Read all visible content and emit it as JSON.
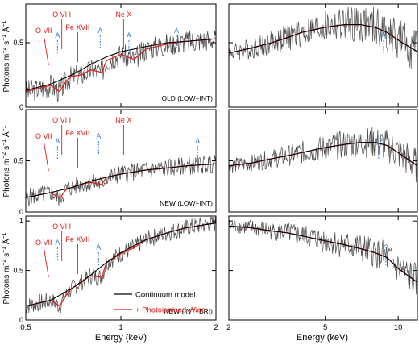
{
  "figure": {
    "ylabel_main": "Photons m",
    "ylabel_sup1": "−2",
    "ylabel_mid": " s",
    "ylabel_sup2": "−1",
    "ylabel_end": " Å",
    "ylabel_sup3": "−1",
    "xlabel_left": "Energy (keV)",
    "xlabel_right": "Energy (keV)",
    "legend": {
      "continuum": "Continuum model",
      "wind": "+ Photoionised Wind"
    },
    "colors": {
      "data": "#4a4a4a",
      "continuum": "#000000",
      "wind": "#e0201b",
      "ion_label": "#e0201b",
      "marker": "#3a7fd5",
      "frame": "#000000"
    }
  },
  "chart_data": [
    {
      "type": "line",
      "row": 0,
      "col": 0,
      "panel_label": "OLD (LOW−INT)",
      "xscale": "log",
      "xlim": [
        0.5,
        2.0
      ],
      "ylim": [
        0,
        0.8
      ],
      "yticks": [
        0,
        0.5
      ],
      "xticks": [
        "0.5",
        "1",
        "2"
      ],
      "series": [
        {
          "name": "Continuum model",
          "x": [
            0.5,
            0.6,
            0.7,
            0.8,
            0.9,
            1.0,
            1.2,
            1.4,
            1.6,
            2.0
          ],
          "y": [
            0.13,
            0.18,
            0.25,
            0.33,
            0.39,
            0.43,
            0.47,
            0.5,
            0.51,
            0.53
          ]
        },
        {
          "name": "+ Photoionised Wind",
          "x": [
            0.5,
            0.6,
            0.64,
            0.67,
            0.7,
            0.75,
            0.8,
            0.87,
            0.9,
            1.0,
            1.1,
            1.2,
            1.4,
            1.6,
            2.0
          ],
          "y": [
            0.12,
            0.17,
            0.12,
            0.2,
            0.24,
            0.25,
            0.29,
            0.27,
            0.36,
            0.41,
            0.37,
            0.45,
            0.49,
            0.51,
            0.53
          ]
        }
      ],
      "annotations": [
        {
          "text": "O VII",
          "x": 0.57,
          "kind": "ion"
        },
        {
          "text": "O VIII",
          "x": 0.65,
          "kind": "ion"
        },
        {
          "text": "Fe XVII",
          "x": 0.73,
          "kind": "ion"
        },
        {
          "text": "Ne X",
          "x": 1.02,
          "kind": "ion"
        },
        {
          "text": "A",
          "x": 0.63,
          "kind": "absorber"
        },
        {
          "text": "A",
          "x": 0.86,
          "kind": "absorber"
        },
        {
          "text": "A",
          "x": 1.06,
          "kind": "absorber"
        },
        {
          "text": "A",
          "x": 1.5,
          "kind": "absorber"
        }
      ]
    },
    {
      "type": "line",
      "row": 0,
      "col": 1,
      "panel_label": "",
      "xscale": "log",
      "xlim": [
        2,
        12
      ],
      "ylim": [
        0,
        0.8
      ],
      "yticks": [
        0,
        0.5
      ],
      "xticks": [
        "2",
        "5",
        "10"
      ],
      "series": [
        {
          "name": "Continuum model",
          "x": [
            2,
            2.5,
            3,
            3.5,
            4,
            5,
            6,
            7,
            8,
            9,
            10,
            12
          ],
          "y": [
            0.42,
            0.46,
            0.5,
            0.54,
            0.58,
            0.62,
            0.64,
            0.64,
            0.62,
            0.58,
            0.52,
            0.43
          ]
        },
        {
          "name": "+ Photoionised Wind",
          "x": [
            2,
            2.5,
            3,
            3.5,
            4,
            5,
            6,
            7,
            8,
            9,
            10,
            12
          ],
          "y": [
            0.42,
            0.46,
            0.5,
            0.54,
            0.58,
            0.62,
            0.64,
            0.64,
            0.62,
            0.58,
            0.52,
            0.43
          ]
        }
      ],
      "annotations": [
        {
          "text": "A",
          "x": 8.7,
          "kind": "absorber"
        }
      ]
    },
    {
      "type": "line",
      "row": 1,
      "col": 0,
      "panel_label": "NEW (LOW−INT)",
      "xscale": "log",
      "xlim": [
        0.5,
        2.0
      ],
      "ylim": [
        0,
        1.0
      ],
      "yticks": [
        0,
        0.5
      ],
      "xticks": [
        "0.5",
        "1",
        "2"
      ],
      "series": [
        {
          "name": "Continuum model",
          "x": [
            0.5,
            0.6,
            0.7,
            0.8,
            0.9,
            1.0,
            1.2,
            1.4,
            1.6,
            2.0
          ],
          "y": [
            0.14,
            0.19,
            0.24,
            0.3,
            0.34,
            0.37,
            0.41,
            0.43,
            0.45,
            0.47
          ]
        },
        {
          "name": "+ Photoionised Wind",
          "x": [
            0.5,
            0.6,
            0.64,
            0.67,
            0.7,
            0.75,
            0.8,
            0.87,
            0.9,
            1.0,
            1.2,
            1.4,
            1.6,
            2.0
          ],
          "y": [
            0.14,
            0.19,
            0.13,
            0.22,
            0.24,
            0.27,
            0.29,
            0.27,
            0.34,
            0.37,
            0.41,
            0.43,
            0.45,
            0.47
          ]
        }
      ],
      "annotations": [
        {
          "text": "O VII",
          "x": 0.57,
          "kind": "ion"
        },
        {
          "text": "O VIII",
          "x": 0.65,
          "kind": "ion"
        },
        {
          "text": "Fe XVII",
          "x": 0.73,
          "kind": "ion"
        },
        {
          "text": "Ne X",
          "x": 1.02,
          "kind": "ion"
        },
        {
          "text": "A",
          "x": 0.63,
          "kind": "absorber"
        },
        {
          "text": "A",
          "x": 0.85,
          "kind": "absorber"
        },
        {
          "text": "A",
          "x": 1.75,
          "kind": "absorber"
        }
      ]
    },
    {
      "type": "line",
      "row": 1,
      "col": 1,
      "panel_label": "",
      "xscale": "log",
      "xlim": [
        2,
        12
      ],
      "ylim": [
        0,
        1.0
      ],
      "yticks": [
        0,
        0.5
      ],
      "xticks": [
        "2",
        "5",
        "10"
      ],
      "series": [
        {
          "name": "Continuum model",
          "x": [
            2,
            2.5,
            3,
            3.5,
            4,
            5,
            6,
            7,
            8,
            9,
            10,
            12
          ],
          "y": [
            0.45,
            0.48,
            0.52,
            0.55,
            0.58,
            0.63,
            0.66,
            0.68,
            0.68,
            0.65,
            0.58,
            0.45
          ]
        },
        {
          "name": "+ Photoionised Wind",
          "x": [
            2,
            2.5,
            3,
            3.5,
            4,
            5,
            6,
            7,
            8,
            9,
            10,
            12
          ],
          "y": [
            0.45,
            0.48,
            0.52,
            0.55,
            0.58,
            0.63,
            0.66,
            0.68,
            0.68,
            0.65,
            0.58,
            0.45
          ]
        }
      ],
      "annotations": [
        {
          "text": "??",
          "x": 8.3,
          "kind": "unknown"
        }
      ]
    },
    {
      "type": "line",
      "row": 2,
      "col": 0,
      "panel_label": "NEW (INT−BRI)",
      "xscale": "log",
      "xlim": [
        0.5,
        2.0
      ],
      "ylim": [
        0,
        1.05
      ],
      "yticks": [
        0,
        0.5,
        1
      ],
      "xticks": [
        "0.5",
        "1",
        "2"
      ],
      "series": [
        {
          "name": "Continuum model",
          "x": [
            0.5,
            0.6,
            0.7,
            0.8,
            0.9,
            1.0,
            1.1,
            1.2,
            1.4,
            1.6,
            2.0
          ],
          "y": [
            0.14,
            0.2,
            0.32,
            0.45,
            0.58,
            0.68,
            0.75,
            0.81,
            0.88,
            0.93,
            0.98
          ]
        },
        {
          "name": "+ Photoionised Wind",
          "x": [
            0.5,
            0.6,
            0.64,
            0.67,
            0.7,
            0.75,
            0.8,
            0.87,
            0.9,
            1.0,
            1.1,
            1.2,
            1.4,
            1.6,
            2.0
          ],
          "y": [
            0.14,
            0.2,
            0.14,
            0.25,
            0.32,
            0.38,
            0.45,
            0.43,
            0.58,
            0.67,
            0.73,
            0.81,
            0.88,
            0.93,
            0.98
          ]
        }
      ],
      "annotations": [
        {
          "text": "O VII",
          "x": 0.57,
          "kind": "ion"
        },
        {
          "text": "O VIII",
          "x": 0.65,
          "kind": "ion"
        },
        {
          "text": "Fe XVII",
          "x": 0.73,
          "kind": "ion"
        },
        {
          "text": "A",
          "x": 0.63,
          "kind": "absorber"
        },
        {
          "text": "A",
          "x": 0.85,
          "kind": "absorber"
        }
      ]
    },
    {
      "type": "line",
      "row": 2,
      "col": 1,
      "panel_label": "",
      "xscale": "log",
      "xlim": [
        2,
        12
      ],
      "ylim": [
        0,
        1.05
      ],
      "yticks": [
        0,
        0.5,
        1
      ],
      "xticks": [
        "2",
        "5",
        "10"
      ],
      "series": [
        {
          "name": "Continuum model",
          "x": [
            2,
            2.5,
            3,
            3.5,
            4,
            5,
            6,
            7,
            8,
            9,
            10,
            12
          ],
          "y": [
            0.95,
            0.93,
            0.9,
            0.88,
            0.85,
            0.8,
            0.76,
            0.72,
            0.68,
            0.63,
            0.52,
            0.38
          ]
        },
        {
          "name": "+ Photoionised Wind",
          "x": [
            2,
            2.5,
            3,
            3.5,
            4,
            5,
            6,
            7,
            8,
            9,
            10,
            12
          ],
          "y": [
            0.95,
            0.93,
            0.9,
            0.88,
            0.85,
            0.8,
            0.76,
            0.72,
            0.68,
            0.63,
            0.52,
            0.38
          ]
        }
      ],
      "annotations": [
        {
          "text": "?",
          "x": 8.9,
          "kind": "unknown"
        }
      ]
    }
  ]
}
